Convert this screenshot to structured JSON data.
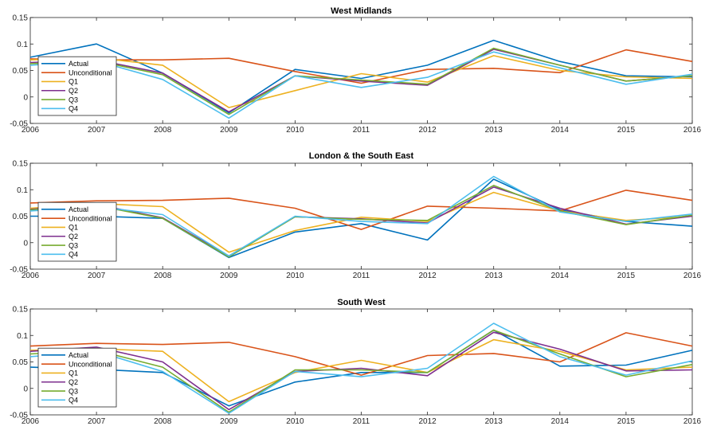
{
  "series_colors": {
    "Actual": "#0072BD",
    "Unconditional": "#D95319",
    "Q1": "#EDB120",
    "Q2": "#7E2F8E",
    "Q3": "#77AC30",
    "Q4": "#4DBEEE"
  },
  "chart_data": [
    {
      "type": "line",
      "title": "West Midlands",
      "x": [
        2006,
        2007,
        2008,
        2009,
        2010,
        2011,
        2012,
        2013,
        2014,
        2015,
        2016
      ],
      "xlim": [
        2006,
        2016
      ],
      "ylim": [
        -0.05,
        0.15
      ],
      "yticks": [
        -0.05,
        0,
        0.05,
        0.1,
        0.15
      ],
      "ytick_labels": [
        "-0.05",
        "0",
        "0.05",
        "0.1",
        "0.15"
      ],
      "legend_position": "left",
      "series": [
        {
          "name": "Actual",
          "values": [
            0.075,
            0.1,
            0.045,
            -0.03,
            0.052,
            0.035,
            0.06,
            0.107,
            0.067,
            0.04,
            0.038
          ]
        },
        {
          "name": "Unconditional",
          "values": [
            0.072,
            0.07,
            0.07,
            0.073,
            0.048,
            0.026,
            0.052,
            0.054,
            0.046,
            0.089,
            0.067
          ]
        },
        {
          "name": "Q1",
          "values": [
            0.07,
            0.074,
            0.06,
            -0.02,
            0.012,
            0.044,
            0.028,
            0.078,
            0.05,
            0.038,
            0.035
          ]
        },
        {
          "name": "Q2",
          "values": [
            0.065,
            0.07,
            0.045,
            -0.028,
            0.04,
            0.03,
            0.022,
            0.09,
            0.06,
            0.03,
            0.04
          ]
        },
        {
          "name": "Q3",
          "values": [
            0.063,
            0.068,
            0.042,
            -0.033,
            0.04,
            0.032,
            0.024,
            0.092,
            0.06,
            0.03,
            0.04
          ]
        },
        {
          "name": "Q4",
          "values": [
            0.06,
            0.068,
            0.033,
            -0.04,
            0.04,
            0.018,
            0.037,
            0.085,
            0.055,
            0.024,
            0.043
          ]
        }
      ]
    },
    {
      "type": "line",
      "title": "London & the South East",
      "x": [
        2006,
        2007,
        2008,
        2009,
        2010,
        2011,
        2012,
        2013,
        2014,
        2015,
        2016
      ],
      "xlim": [
        2006,
        2016
      ],
      "ylim": [
        -0.05,
        0.15
      ],
      "yticks": [
        -0.05,
        0,
        0.05,
        0.1,
        0.15
      ],
      "ytick_labels": [
        "-0.05",
        "0",
        "0.05",
        "0.1",
        "0.15"
      ],
      "legend_position": "left",
      "series": [
        {
          "name": "Actual",
          "values": [
            0.05,
            0.05,
            0.046,
            -0.028,
            0.02,
            0.036,
            0.005,
            0.12,
            0.062,
            0.04,
            0.031
          ]
        },
        {
          "name": "Unconditional",
          "values": [
            0.075,
            0.079,
            0.08,
            0.084,
            0.065,
            0.025,
            0.069,
            0.065,
            0.06,
            0.099,
            0.08
          ]
        },
        {
          "name": "Q1",
          "values": [
            0.065,
            0.074,
            0.068,
            -0.018,
            0.023,
            0.048,
            0.04,
            0.095,
            0.06,
            0.042,
            0.05
          ]
        },
        {
          "name": "Q2",
          "values": [
            0.063,
            0.072,
            0.047,
            -0.025,
            0.049,
            0.045,
            0.037,
            0.105,
            0.065,
            0.035,
            0.05
          ]
        },
        {
          "name": "Q3",
          "values": [
            0.062,
            0.07,
            0.046,
            -0.027,
            0.049,
            0.044,
            0.042,
            0.108,
            0.06,
            0.034,
            0.052
          ]
        },
        {
          "name": "Q4",
          "values": [
            0.06,
            0.068,
            0.053,
            -0.025,
            0.05,
            0.04,
            0.036,
            0.125,
            0.058,
            0.04,
            0.054
          ]
        }
      ]
    },
    {
      "type": "line",
      "title": "South West",
      "x": [
        2006,
        2007,
        2008,
        2009,
        2010,
        2011,
        2012,
        2013,
        2014,
        2015,
        2016
      ],
      "xlim": [
        2006,
        2016
      ],
      "ylim": [
        -0.05,
        0.15
      ],
      "yticks": [
        -0.05,
        0,
        0.05,
        0.1,
        0.15
      ],
      "ytick_labels": [
        "-0.05",
        "0",
        "0.05",
        "0.1",
        "0.15"
      ],
      "legend_position": "left",
      "series": [
        {
          "name": "Actual",
          "values": [
            0.04,
            0.036,
            0.03,
            -0.033,
            0.012,
            0.03,
            0.03,
            0.11,
            0.042,
            0.044,
            0.072
          ]
        },
        {
          "name": "Unconditional",
          "values": [
            0.08,
            0.085,
            0.083,
            0.087,
            0.06,
            0.025,
            0.062,
            0.066,
            0.05,
            0.105,
            0.08
          ]
        },
        {
          "name": "Q1",
          "values": [
            0.072,
            0.075,
            0.07,
            -0.025,
            0.03,
            0.053,
            0.03,
            0.092,
            0.07,
            0.035,
            0.04
          ]
        },
        {
          "name": "Q2",
          "values": [
            0.07,
            0.078,
            0.05,
            -0.04,
            0.032,
            0.038,
            0.024,
            0.106,
            0.074,
            0.033,
            0.035
          ]
        },
        {
          "name": "Q3",
          "values": [
            0.065,
            0.072,
            0.04,
            -0.045,
            0.035,
            0.035,
            0.03,
            0.11,
            0.065,
            0.022,
            0.045
          ]
        },
        {
          "name": "Q4",
          "values": [
            0.06,
            0.07,
            0.032,
            -0.047,
            0.032,
            0.022,
            0.038,
            0.123,
            0.06,
            0.025,
            0.052
          ]
        }
      ]
    }
  ]
}
